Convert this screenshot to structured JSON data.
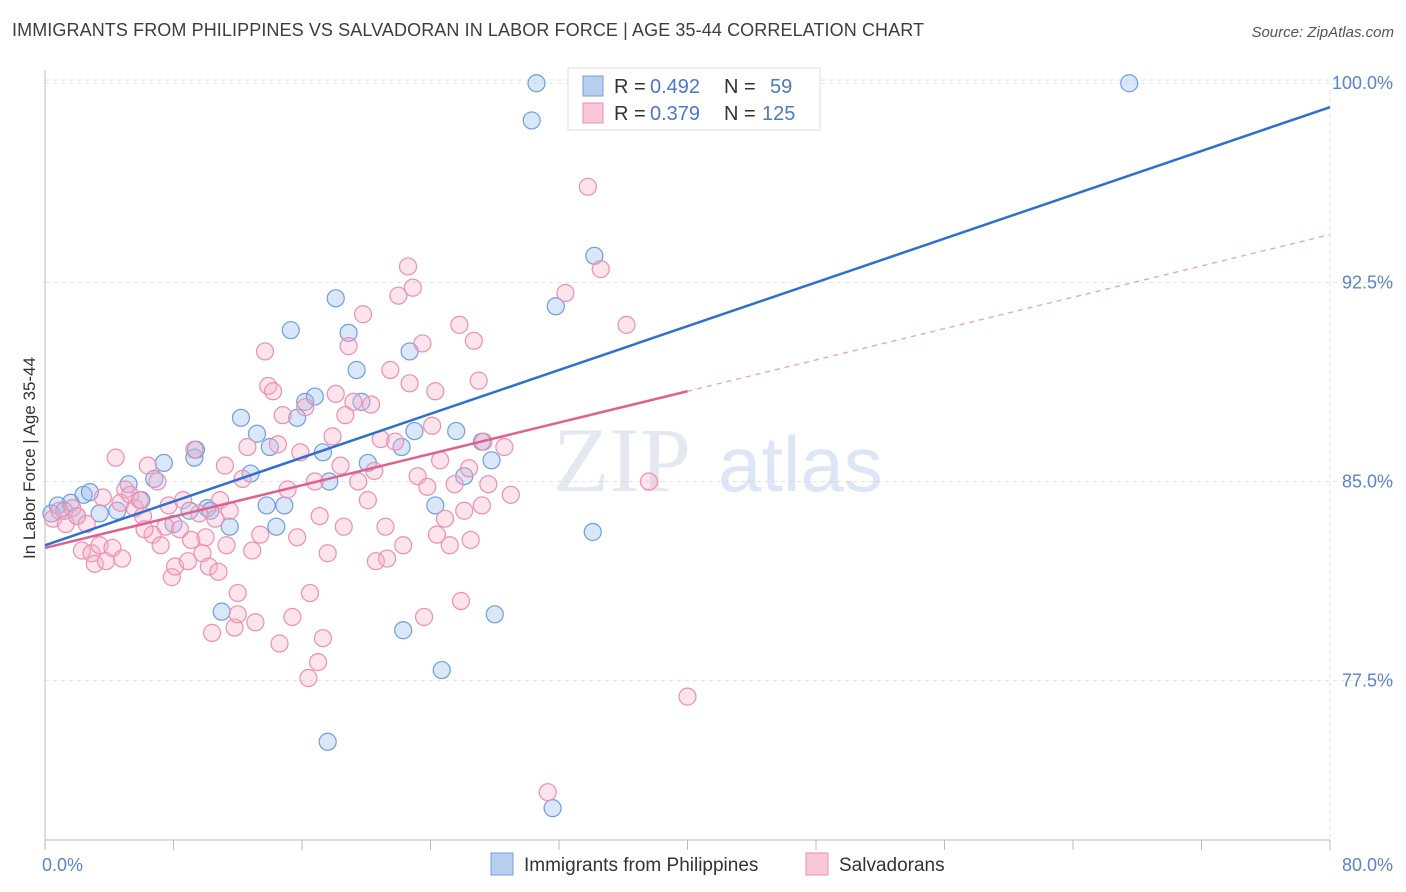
{
  "title": "IMMIGRANTS FROM PHILIPPINES VS SALVADORAN IN LABOR FORCE | AGE 35-44 CORRELATION CHART",
  "source": "Source: ZipAtlas.com",
  "watermark": {
    "zip": "ZIP",
    "atlas": "atlas"
  },
  "legend": {
    "rows": [
      {
        "r_label": "R =",
        "r_value": "0.492",
        "n_label": "N =",
        "n_value": "59",
        "color": "#6f9ee0"
      },
      {
        "r_label": "R =",
        "r_value": "0.379",
        "n_label": "N =",
        "n_value": "125",
        "color": "#ef8fb0"
      }
    ]
  },
  "chart_data": {
    "type": "scatter",
    "ylabel": "In Labor Force | Age 35-44",
    "xlim": [
      0,
      80
    ],
    "ylim": [
      71.5,
      100.8
    ],
    "x_ticks": [
      "0.0%",
      "80.0%"
    ],
    "y_ticks": [
      {
        "value": 100.0,
        "label": "100.0%"
      },
      {
        "value": 92.5,
        "label": "92.5%"
      },
      {
        "value": 85.0,
        "label": "85.0%"
      },
      {
        "value": 77.5,
        "label": "77.5%"
      }
    ],
    "grid": true,
    "series": [
      {
        "name": "Immigrants from Philippines",
        "color": "#6f9ee0",
        "fill": "rgba(150,185,235,0.35)",
        "trend": {
          "x": [
            0,
            80
          ],
          "y": [
            82.6,
            99.1
          ]
        },
        "points": [
          [
            0.4,
            83.8
          ],
          [
            0.8,
            84.1
          ],
          [
            1.2,
            83.9
          ],
          [
            1.6,
            84.2
          ],
          [
            2.0,
            83.7
          ],
          [
            2.4,
            84.5
          ],
          [
            2.8,
            84.6
          ],
          [
            3.4,
            83.8
          ],
          [
            4.5,
            83.9
          ],
          [
            5.2,
            84.9
          ],
          [
            6.0,
            84.3
          ],
          [
            6.8,
            85.1
          ],
          [
            7.4,
            85.7
          ],
          [
            8.0,
            83.4
          ],
          [
            9.3,
            85.9
          ],
          [
            9.4,
            86.2
          ],
          [
            10.1,
            84.0
          ],
          [
            10.3,
            83.9
          ],
          [
            11.0,
            80.1
          ],
          [
            11.5,
            83.3
          ],
          [
            12.2,
            87.4
          ],
          [
            12.8,
            85.3
          ],
          [
            13.2,
            86.8
          ],
          [
            13.8,
            84.1
          ],
          [
            14.4,
            83.3
          ],
          [
            14.9,
            84.1
          ],
          [
            15.3,
            90.7
          ],
          [
            15.7,
            87.4
          ],
          [
            16.2,
            88.0
          ],
          [
            16.8,
            88.2
          ],
          [
            17.3,
            86.1
          ],
          [
            17.7,
            85.0
          ],
          [
            18.1,
            91.9
          ],
          [
            18.9,
            90.6
          ],
          [
            19.4,
            89.2
          ],
          [
            19.7,
            88.0
          ],
          [
            20.1,
            85.7
          ],
          [
            22.2,
            86.3
          ],
          [
            22.3,
            79.4
          ],
          [
            22.7,
            89.9
          ],
          [
            23.0,
            86.9
          ],
          [
            24.3,
            84.1
          ],
          [
            24.7,
            77.9
          ],
          [
            25.6,
            86.9
          ],
          [
            26.1,
            85.2
          ],
          [
            27.2,
            86.5
          ],
          [
            27.8,
            85.8
          ],
          [
            28.0,
            80.0
          ],
          [
            30.3,
            98.6
          ],
          [
            30.6,
            100.0
          ],
          [
            31.6,
            72.7
          ],
          [
            31.8,
            91.6
          ],
          [
            34.1,
            83.1
          ],
          [
            34.2,
            93.5
          ],
          [
            47.7,
            100.0
          ],
          [
            67.5,
            100.0
          ],
          [
            17.6,
            75.2
          ],
          [
            9.0,
            83.9
          ],
          [
            14.0,
            86.3
          ]
        ]
      },
      {
        "name": "Salvadorans",
        "color": "#ef8fb0",
        "fill": "rgba(245,175,200,0.35)",
        "trend": {
          "x": [
            0,
            40
          ],
          "y": [
            82.5,
            88.4
          ]
        },
        "trend_ext": {
          "x": [
            40,
            80
          ],
          "y": [
            88.4,
            94.3
          ]
        },
        "points": [
          [
            0.5,
            83.6
          ],
          [
            0.9,
            83.9
          ],
          [
            1.3,
            83.4
          ],
          [
            1.7,
            84.0
          ],
          [
            2.0,
            83.7
          ],
          [
            2.3,
            82.4
          ],
          [
            2.6,
            83.4
          ],
          [
            2.9,
            82.3
          ],
          [
            3.1,
            81.9
          ],
          [
            3.4,
            82.6
          ],
          [
            3.8,
            82.0
          ],
          [
            4.2,
            82.5
          ],
          [
            4.4,
            85.9
          ],
          [
            4.7,
            84.2
          ],
          [
            5.0,
            84.7
          ],
          [
            5.3,
            84.5
          ],
          [
            5.6,
            84.0
          ],
          [
            5.9,
            84.3
          ],
          [
            6.1,
            83.7
          ],
          [
            6.4,
            85.6
          ],
          [
            6.7,
            83.0
          ],
          [
            7.0,
            85.0
          ],
          [
            7.2,
            82.6
          ],
          [
            7.5,
            83.3
          ],
          [
            7.7,
            84.1
          ],
          [
            7.9,
            81.4
          ],
          [
            8.1,
            81.8
          ],
          [
            8.4,
            83.2
          ],
          [
            8.6,
            84.3
          ],
          [
            8.9,
            82.0
          ],
          [
            9.1,
            82.8
          ],
          [
            9.3,
            86.2
          ],
          [
            9.6,
            83.8
          ],
          [
            9.8,
            82.3
          ],
          [
            10.0,
            82.9
          ],
          [
            10.2,
            81.8
          ],
          [
            10.4,
            79.3
          ],
          [
            10.6,
            83.6
          ],
          [
            10.9,
            84.3
          ],
          [
            11.2,
            85.6
          ],
          [
            11.5,
            83.9
          ],
          [
            11.8,
            79.5
          ],
          [
            12.0,
            80.8
          ],
          [
            12.3,
            85.1
          ],
          [
            12.6,
            86.3
          ],
          [
            12.9,
            82.4
          ],
          [
            13.1,
            79.7
          ],
          [
            13.4,
            83.0
          ],
          [
            13.7,
            89.9
          ],
          [
            13.9,
            88.6
          ],
          [
            14.2,
            88.4
          ],
          [
            14.5,
            86.4
          ],
          [
            14.8,
            87.5
          ],
          [
            15.1,
            84.7
          ],
          [
            15.4,
            79.9
          ],
          [
            15.7,
            82.9
          ],
          [
            15.9,
            86.1
          ],
          [
            16.2,
            87.8
          ],
          [
            16.5,
            80.8
          ],
          [
            16.8,
            85.0
          ],
          [
            17.1,
            83.7
          ],
          [
            17.3,
            79.1
          ],
          [
            17.6,
            82.3
          ],
          [
            17.9,
            86.7
          ],
          [
            18.1,
            88.3
          ],
          [
            18.4,
            85.6
          ],
          [
            18.7,
            87.5
          ],
          [
            18.9,
            90.1
          ],
          [
            19.2,
            88.0
          ],
          [
            19.5,
            85.0
          ],
          [
            19.8,
            91.3
          ],
          [
            20.1,
            84.3
          ],
          [
            20.3,
            87.9
          ],
          [
            20.6,
            82.0
          ],
          [
            20.9,
            86.6
          ],
          [
            21.2,
            83.3
          ],
          [
            21.5,
            89.2
          ],
          [
            21.8,
            86.5
          ],
          [
            22.0,
            92.0
          ],
          [
            22.3,
            82.6
          ],
          [
            22.6,
            93.1
          ],
          [
            22.9,
            92.3
          ],
          [
            23.2,
            85.2
          ],
          [
            23.5,
            90.2
          ],
          [
            23.8,
            84.8
          ],
          [
            24.1,
            87.1
          ],
          [
            24.3,
            88.4
          ],
          [
            24.6,
            85.8
          ],
          [
            24.9,
            83.6
          ],
          [
            25.2,
            82.6
          ],
          [
            25.5,
            84.9
          ],
          [
            25.8,
            90.9
          ],
          [
            26.1,
            83.9
          ],
          [
            26.4,
            85.5
          ],
          [
            26.7,
            90.3
          ],
          [
            27.0,
            88.8
          ],
          [
            27.3,
            86.5
          ],
          [
            27.6,
            84.9
          ],
          [
            29.0,
            84.5
          ],
          [
            31.3,
            73.3
          ],
          [
            32.4,
            92.1
          ],
          [
            33.8,
            96.1
          ],
          [
            34.6,
            93.0
          ],
          [
            36.2,
            90.9
          ],
          [
            37.6,
            85.0
          ],
          [
            40.0,
            76.9
          ],
          [
            16.4,
            77.6
          ],
          [
            17.0,
            78.2
          ],
          [
            14.6,
            78.9
          ],
          [
            12.0,
            80.0
          ],
          [
            18.6,
            83.3
          ],
          [
            21.3,
            82.1
          ],
          [
            23.6,
            79.9
          ],
          [
            25.9,
            80.5
          ],
          [
            27.2,
            84.1
          ],
          [
            10.8,
            81.6
          ],
          [
            11.3,
            82.6
          ],
          [
            6.2,
            83.2
          ],
          [
            4.8,
            82.1
          ],
          [
            3.6,
            84.4
          ],
          [
            20.5,
            85.4
          ],
          [
            22.7,
            88.7
          ],
          [
            24.4,
            83.0
          ],
          [
            26.5,
            82.8
          ],
          [
            28.6,
            86.3
          ]
        ]
      }
    ]
  },
  "bottom_legend": [
    "Immigrants from Philippines",
    "Salvadorans"
  ]
}
